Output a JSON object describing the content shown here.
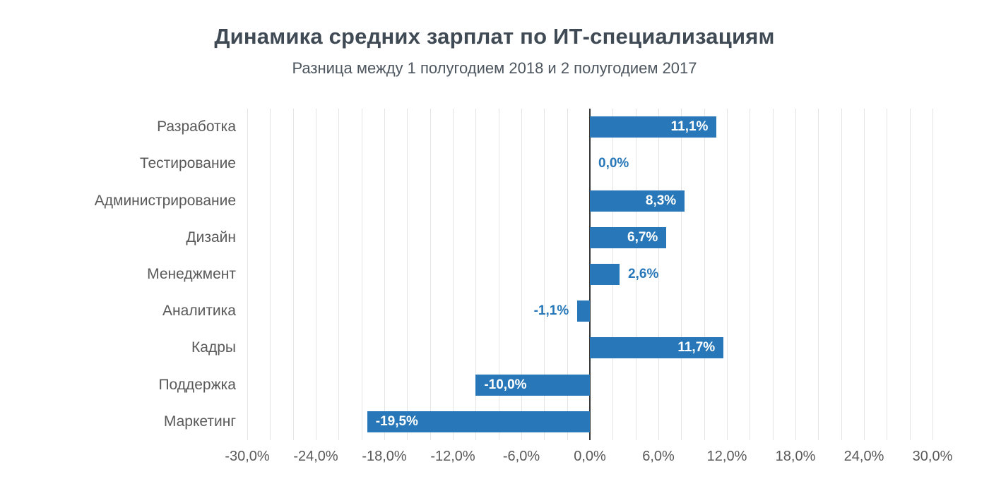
{
  "chart_data": {
    "type": "bar",
    "orientation": "horizontal",
    "title": "Динамика средних зарплат по ИТ-специализациям",
    "subtitle": "Разница между 1 полугодием 2018 и 2 полугодием 2017",
    "categories": [
      "Разработка",
      "Тестирование",
      "Администрирование",
      "Дизайн",
      "Менеджмент",
      "Аналитика",
      "Кадры",
      "Поддержка",
      "Маркетинг"
    ],
    "values": [
      11.1,
      0.0,
      8.3,
      6.7,
      2.6,
      -1.1,
      11.7,
      -10.0,
      -19.5
    ],
    "value_labels": [
      "11,1%",
      "0,0%",
      "8,3%",
      "6,7%",
      "2,6%",
      "-1,1%",
      "11,7%",
      "-10,0%",
      "-19,5%"
    ],
    "xlim": [
      -30,
      30
    ],
    "x_tick_step": 6,
    "x_tick_labels": [
      "-30,0%",
      "-24,0%",
      "-18,0%",
      "-12,0%",
      "-6,0%",
      "0,0%",
      "6,0%",
      "12,0%",
      "18,0%",
      "24,0%",
      "30,0%"
    ],
    "gridline_step": 2,
    "grid": true,
    "legend": "none",
    "inside_label_threshold": 5,
    "colors": {
      "bar": "#2878b9",
      "label_inside": "#ffffff",
      "label_outside": "#2878b9",
      "gridline": "#e4e4e4",
      "zero_line": "#363636",
      "title": "#3f4a54",
      "subtitle": "#4d565e",
      "axis_text": "#595959"
    }
  }
}
